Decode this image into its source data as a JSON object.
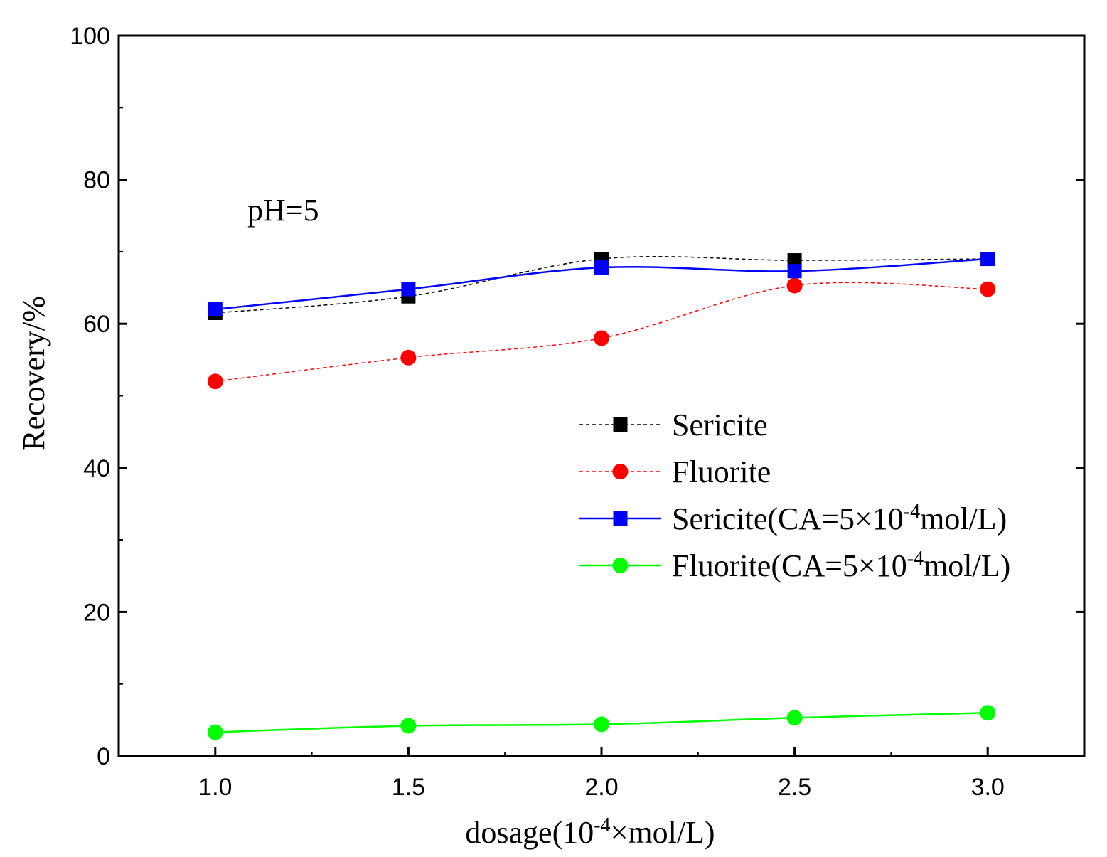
{
  "chart_data": {
    "type": "line",
    "title": "",
    "xlabel": {
      "prefix": "dosage(10",
      "sup": "-4",
      "suffix": "×mol/L)"
    },
    "ylabel": "Recovery/%",
    "xlim": [
      0.75,
      3.25
    ],
    "ylim": [
      0,
      100
    ],
    "xticks": [
      "1.0",
      "1.5",
      "2.0",
      "2.5",
      "3.0"
    ],
    "yticks": [
      "0",
      "20",
      "40",
      "60",
      "80",
      "100"
    ],
    "x": [
      1.0,
      1.5,
      2.0,
      2.5,
      3.0
    ],
    "annotation": "pH=5",
    "legend_position": "center-right",
    "series": [
      {
        "name": "Sericite",
        "label_prefix": "Sericite",
        "label_sup": "",
        "label_suffix": "",
        "values": [
          61.5,
          63.8,
          69.0,
          68.8,
          69.0
        ],
        "color": "#000000",
        "marker": "square",
        "dashed": true
      },
      {
        "name": "Fluorite",
        "label_prefix": "Fluorite",
        "label_sup": "",
        "label_suffix": "",
        "values": [
          52.0,
          55.3,
          58.0,
          65.3,
          64.8
        ],
        "color": "#ff0000",
        "marker": "circle",
        "dashed": true
      },
      {
        "name": "Sericite(CA=5×10-4mol/L)",
        "label_prefix": "Sericite(CA=5×10",
        "label_sup": "-4",
        "label_suffix": "mol/L)",
        "values": [
          62.0,
          64.8,
          67.8,
          67.3,
          69.0
        ],
        "color": "#0000ff",
        "marker": "square",
        "dashed": false
      },
      {
        "name": "Fluorite(CA=5×10-4mol/L)",
        "label_prefix": "Fluorite(CA=5×10",
        "label_sup": "-4",
        "label_suffix": "mol/L)",
        "values": [
          3.3,
          4.2,
          4.4,
          5.3,
          6.0
        ],
        "color": "#00ff00",
        "marker": "circle",
        "dashed": false
      }
    ]
  }
}
